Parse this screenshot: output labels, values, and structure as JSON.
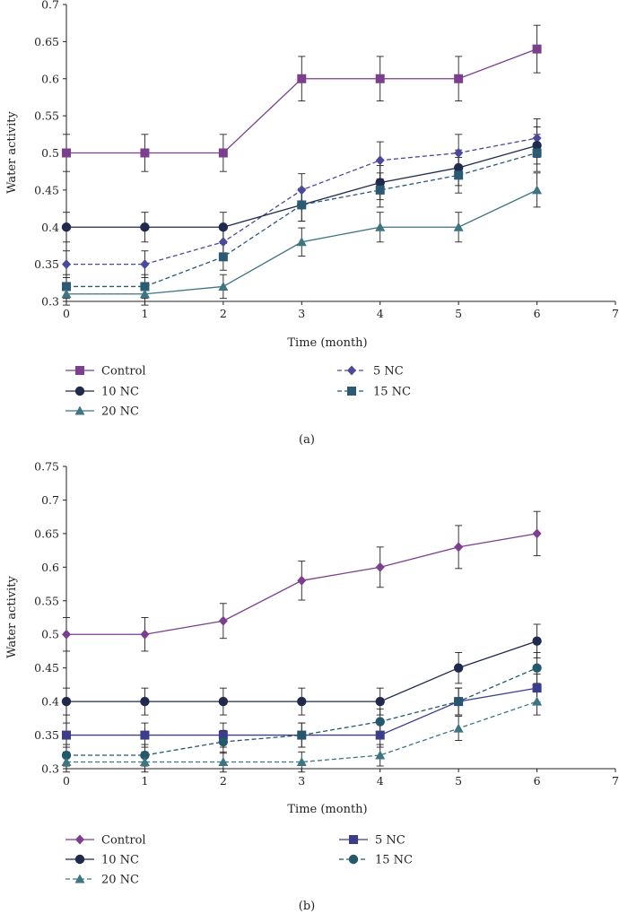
{
  "chart_data": [
    {
      "type": "line",
      "panel_label": "(a)",
      "xlabel": "Time (month)",
      "ylabel": "Water activity",
      "xlim": [
        0,
        7
      ],
      "ylim": [
        0.3,
        0.7
      ],
      "x_ticks": [
        0,
        1,
        2,
        3,
        4,
        5,
        6,
        7
      ],
      "y_ticks": [
        0.3,
        0.35,
        0.4,
        0.45,
        0.5,
        0.55,
        0.6,
        0.65,
        0.7
      ],
      "x_tick_labels": [
        "0",
        "1",
        "2",
        "3",
        "4",
        "5",
        "6",
        "7"
      ],
      "y_tick_labels": [
        "0.3",
        "0.35",
        "0.4",
        "0.45",
        "0.5",
        "0.55",
        "0.6",
        "0.65",
        "0.7"
      ],
      "x": [
        0,
        1,
        2,
        3,
        4,
        5,
        6
      ],
      "series": [
        {
          "name": "Control",
          "values": [
            0.5,
            0.5,
            0.5,
            0.6,
            0.6,
            0.6,
            0.64
          ],
          "errors": [
            0.025,
            0.025,
            0.025,
            0.03,
            0.03,
            0.03,
            0.032
          ],
          "color": "#7b3f8e",
          "marker": "square",
          "dash": false
        },
        {
          "name": "5 NC",
          "values": [
            0.35,
            0.35,
            0.38,
            0.45,
            0.49,
            0.5,
            0.52
          ],
          "errors": [
            0.018,
            0.018,
            0.02,
            0.022,
            0.025,
            0.025,
            0.026
          ],
          "color": "#4b4a9a",
          "marker": "diamond",
          "dash": true
        },
        {
          "name": "10 NC",
          "values": [
            0.4,
            0.4,
            0.4,
            0.43,
            0.46,
            0.48,
            0.51
          ],
          "errors": [
            0.02,
            0.02,
            0.02,
            0.022,
            0.023,
            0.024,
            0.025
          ],
          "color": "#1f2a4d",
          "marker": "circle",
          "dash": false
        },
        {
          "name": "15 NC",
          "values": [
            0.32,
            0.32,
            0.36,
            0.43,
            0.45,
            0.47,
            0.5
          ],
          "errors": [
            0.016,
            0.016,
            0.018,
            0.022,
            0.023,
            0.024,
            0.025
          ],
          "color": "#2b5a73",
          "marker": "square",
          "dash": true
        },
        {
          "name": "20 NC",
          "values": [
            0.31,
            0.31,
            0.32,
            0.38,
            0.4,
            0.4,
            0.45
          ],
          "errors": [
            0.015,
            0.015,
            0.016,
            0.019,
            0.02,
            0.02,
            0.023
          ],
          "color": "#3f7481",
          "marker": "triangle",
          "dash": false
        }
      ]
    },
    {
      "type": "line",
      "panel_label": "(b)",
      "xlabel": "Time (month)",
      "ylabel": "Water activity",
      "xlim": [
        0,
        7
      ],
      "ylim": [
        0.3,
        0.75
      ],
      "x_ticks": [
        0,
        1,
        2,
        3,
        4,
        5,
        6,
        7
      ],
      "y_ticks": [
        0.3,
        0.35,
        0.4,
        0.45,
        0.5,
        0.55,
        0.6,
        0.65,
        0.7,
        0.75
      ],
      "x_tick_labels": [
        "0",
        "1",
        "2",
        "3",
        "4",
        "5",
        "6",
        "7"
      ],
      "y_tick_labels": [
        "0.3",
        "0.35",
        "0.4",
        "0.45",
        "0.5",
        "0.55",
        "0.6",
        "0.65",
        "0.7",
        "0.75"
      ],
      "x": [
        0,
        1,
        2,
        3,
        4,
        5,
        6
      ],
      "series": [
        {
          "name": "Control",
          "values": [
            0.5,
            0.5,
            0.52,
            0.58,
            0.6,
            0.63,
            0.65
          ],
          "errors": [
            0.025,
            0.025,
            0.026,
            0.029,
            0.03,
            0.032,
            0.033
          ],
          "color": "#7b3f8e",
          "marker": "diamond",
          "dash": false
        },
        {
          "name": "5 NC",
          "values": [
            0.35,
            0.35,
            0.35,
            0.35,
            0.35,
            0.4,
            0.42
          ],
          "errors": [
            0.018,
            0.018,
            0.018,
            0.018,
            0.018,
            0.02,
            0.021
          ],
          "color": "#3b3c8c",
          "marker": "square",
          "dash": false
        },
        {
          "name": "10 NC",
          "values": [
            0.4,
            0.4,
            0.4,
            0.4,
            0.4,
            0.45,
            0.49
          ],
          "errors": [
            0.02,
            0.02,
            0.02,
            0.02,
            0.02,
            0.023,
            0.025
          ],
          "color": "#1f2a4d",
          "marker": "circle",
          "dash": false
        },
        {
          "name": "15 NC",
          "values": [
            0.32,
            0.32,
            0.34,
            0.35,
            0.37,
            0.4,
            0.45
          ],
          "errors": [
            0.016,
            0.016,
            0.017,
            0.018,
            0.019,
            0.02,
            0.023
          ],
          "color": "#24586b",
          "marker": "circle",
          "dash": true
        },
        {
          "name": "20 NC",
          "values": [
            0.31,
            0.31,
            0.31,
            0.31,
            0.32,
            0.36,
            0.4
          ],
          "errors": [
            0.015,
            0.015,
            0.015,
            0.015,
            0.016,
            0.018,
            0.02
          ],
          "color": "#3f7481",
          "marker": "triangle",
          "dash": true
        }
      ]
    }
  ]
}
